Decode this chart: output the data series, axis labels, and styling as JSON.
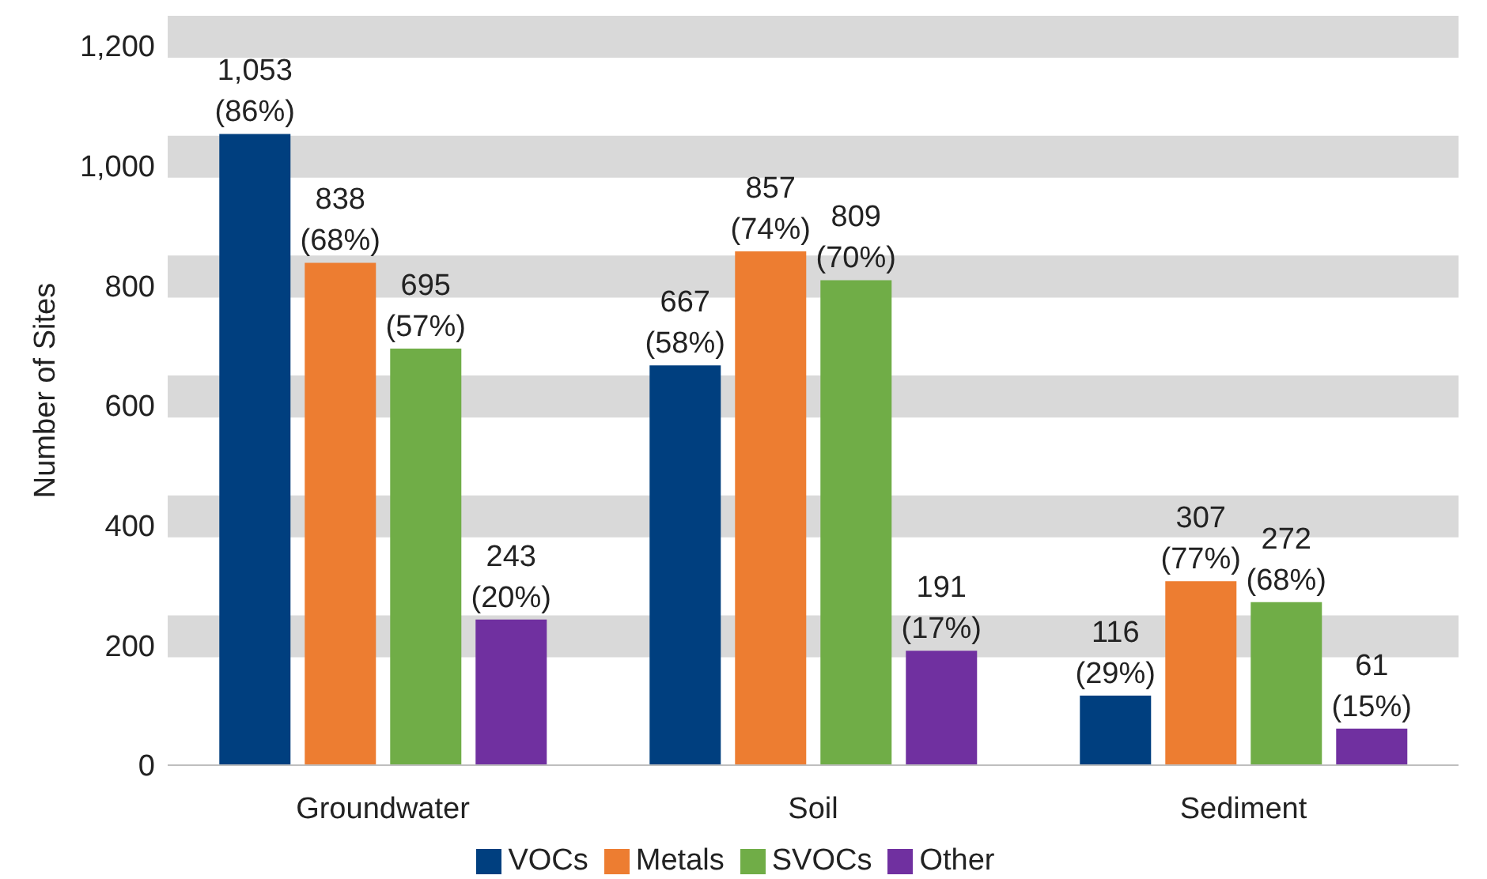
{
  "chart_data": {
    "type": "bar",
    "ylabel": "Number of Sites",
    "categories": [
      "Groundwater",
      "Soil",
      "Sediment"
    ],
    "series": [
      {
        "name": "VOCs",
        "color": "#003f7f",
        "values": [
          1053,
          667,
          116
        ],
        "value_labels": [
          "1,053 (86%)",
          "667 (58%)",
          "116 (29%)"
        ]
      },
      {
        "name": "Metals",
        "color": "#ed7d31",
        "values": [
          838,
          857,
          307
        ],
        "value_labels": [
          "838 (68%)",
          "857 (74%)",
          "307 (77%)"
        ]
      },
      {
        "name": "SVOCs",
        "color": "#70ad47",
        "values": [
          695,
          809,
          272
        ],
        "value_labels": [
          "695 (57%)",
          "809 (70%)",
          "272 (68%)"
        ]
      },
      {
        "name": "Other",
        "color": "#7030a0",
        "values": [
          243,
          191,
          61
        ],
        "value_labels": [
          "243 (20%)",
          "191 (17%)",
          "61 (15%)"
        ]
      }
    ],
    "ylim": [
      0,
      1250
    ],
    "yticks": [
      {
        "value": 0,
        "label": "0"
      },
      {
        "value": 200,
        "label": "200"
      },
      {
        "value": 400,
        "label": "400"
      },
      {
        "value": 600,
        "label": "600"
      },
      {
        "value": 800,
        "label": "800"
      },
      {
        "value": 1000,
        "label": "1,000"
      },
      {
        "value": 1200,
        "label": "1,200"
      }
    ],
    "bands": [
      {
        "axis": "y",
        "from": 180,
        "to": 250,
        "color": "#d9d9d9"
      },
      {
        "axis": "y",
        "from": 380,
        "to": 450,
        "color": "#d9d9d9"
      },
      {
        "axis": "y",
        "from": 580,
        "to": 650,
        "color": "#d9d9d9"
      },
      {
        "axis": "y",
        "from": 780,
        "to": 850,
        "color": "#d9d9d9"
      },
      {
        "axis": "y",
        "from": 980,
        "to": 1050,
        "color": "#d9d9d9"
      },
      {
        "axis": "y",
        "from": 1180,
        "to": 1250,
        "color": "#d9d9d9"
      }
    ],
    "legend": "bottom"
  }
}
